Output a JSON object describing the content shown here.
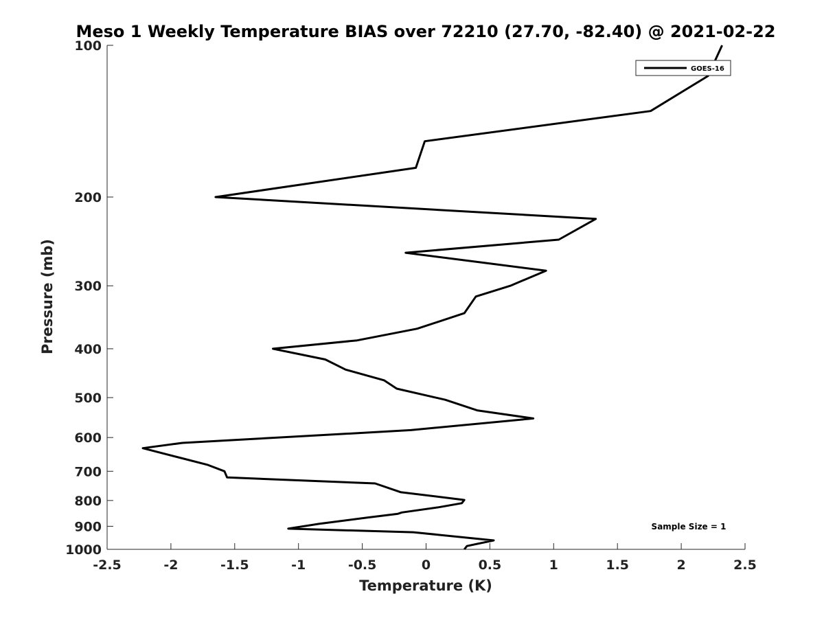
{
  "chart_data": {
    "type": "line",
    "title": "Meso 1 Weekly Temperature BIAS over 72210 (27.70, -82.40) @ 2021-02-22",
    "xlabel": "Temperature (K)",
    "ylabel": "Pressure (mb)",
    "xlim": [
      -2.5,
      2.5
    ],
    "ylim": [
      100,
      1000
    ],
    "yscale": "log",
    "yreversed": true,
    "grid": false,
    "xticks": [
      -2.5,
      -2,
      -1.5,
      -1,
      -0.5,
      0,
      0.5,
      1,
      1.5,
      2,
      2.5
    ],
    "xtick_labels": [
      "-2.5",
      "-2",
      "-1.5",
      "-1",
      "-0.5",
      "0",
      "0.5",
      "1",
      "1.5",
      "2",
      "2.5"
    ],
    "yticks": [
      100,
      200,
      300,
      400,
      500,
      600,
      700,
      800,
      900,
      1000
    ],
    "ytick_labels": [
      "100",
      "200",
      "300",
      "400",
      "500",
      "600",
      "700",
      "800",
      "900",
      "1000"
    ],
    "legend": {
      "position": "top-right",
      "entries": [
        "GOES-16"
      ]
    },
    "annotation": "Sample Size = 1",
    "series": [
      {
        "name": "GOES-16",
        "color": "#000000",
        "x": [
          2.32,
          2.21,
          1.76,
          -0.01,
          -0.08,
          -1.65,
          1.33,
          1.04,
          -0.16,
          0.94,
          0.66,
          0.39,
          0.3,
          -0.07,
          -0.54,
          -1.2,
          -0.79,
          -0.63,
          -0.33,
          -0.23,
          0.15,
          0.4,
          0.84,
          -0.12,
          -1.91,
          -2.22,
          -1.91,
          -1.71,
          -1.58,
          -1.56,
          -0.4,
          -0.2,
          0.3,
          0.28,
          0.1,
          -0.19,
          -0.22,
          -0.46,
          -0.84,
          -1.08,
          -0.1,
          0.53,
          0.32,
          0.3
        ],
        "y": [
          100,
          115,
          135,
          155,
          175,
          200,
          221,
          243,
          258,
          280,
          300,
          315,
          340,
          365,
          385,
          400,
          420,
          440,
          462,
          480,
          505,
          530,
          550,
          580,
          615,
          630,
          660,
          680,
          700,
          720,
          740,
          770,
          798,
          810,
          825,
          845,
          850,
          865,
          890,
          910,
          925,
          960,
          985,
          1000
        ]
      }
    ]
  }
}
